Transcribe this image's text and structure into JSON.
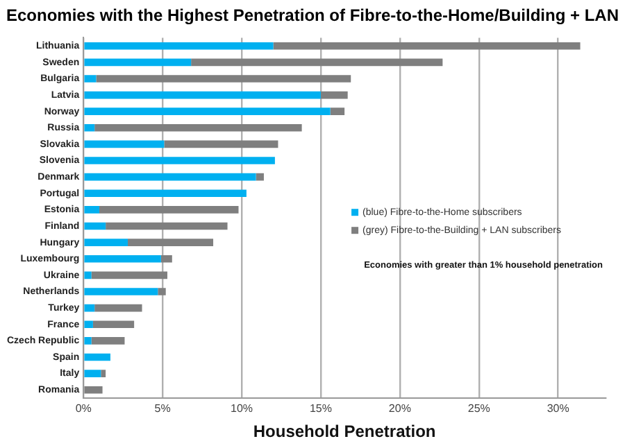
{
  "chart_data": {
    "type": "bar",
    "orientation": "horizontal",
    "stacked": true,
    "title": "Economies  with the Highest Penetration of Fibre-to-the-Home/Building + LAN",
    "xlabel": "Household Penetration",
    "categories": [
      "Lithuania",
      "Sweden",
      "Bulgaria",
      "Latvia",
      "Norway",
      "Russia",
      "Slovakia",
      "Slovenia",
      "Denmark",
      "Portugal",
      "Estonia",
      "Finland",
      "Hungary",
      "Luxembourg",
      "Ukraine",
      "Netherlands",
      "Turkey",
      "France",
      "Czech Republic",
      "Spain",
      "Italy",
      "Romania"
    ],
    "series": [
      {
        "name": "(blue) Fibre-to-the-Home subscribers",
        "color": "#00b0f0",
        "values": [
          12.0,
          6.8,
          0.8,
          15.0,
          15.6,
          0.7,
          5.1,
          12.1,
          10.9,
          10.3,
          1.0,
          1.4,
          2.8,
          4.9,
          0.5,
          4.7,
          0.7,
          0.6,
          0.5,
          1.7,
          1.1,
          0
        ]
      },
      {
        "name": "(grey) Fibre-to-the-Building + LAN subscribers",
        "color": "#7f7f7f",
        "values": [
          19.4,
          15.9,
          16.1,
          1.7,
          0.9,
          13.1,
          7.2,
          0,
          0.5,
          0,
          8.8,
          7.7,
          5.4,
          0.7,
          4.8,
          0.5,
          3.0,
          2.6,
          2.1,
          0,
          0.3,
          1.2
        ]
      }
    ],
    "xlim": [
      0,
      33
    ],
    "xticks": [
      {
        "value": 0,
        "label": "0%"
      },
      {
        "value": 5,
        "label": "5%"
      },
      {
        "value": 10,
        "label": "10%"
      },
      {
        "value": 15,
        "label": "15%"
      },
      {
        "value": 20,
        "label": "20%"
      },
      {
        "value": 25,
        "label": "25%"
      },
      {
        "value": 30,
        "label": "30%"
      }
    ],
    "grid": "x",
    "legend": "right",
    "annotations": [
      "Economies with greater than 1% household penetration"
    ]
  }
}
